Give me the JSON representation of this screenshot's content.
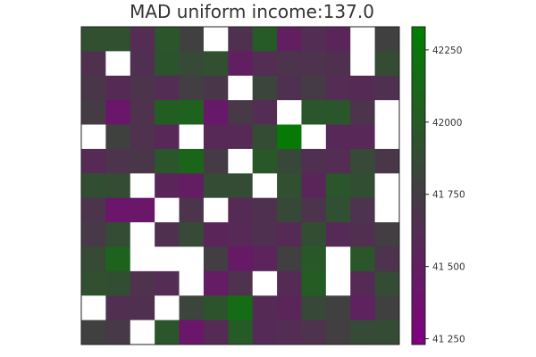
{
  "chart_data": {
    "type": "heatmap",
    "title": "MAD uniform income:137.0",
    "rows": 13,
    "cols": 13,
    "color_min": 41230,
    "color_max": 42330,
    "color_low": "#800080",
    "color_mid": "#404040",
    "color_high": "#008000",
    "empty_color": "#ffffff",
    "colorbar_ticks": [
      {
        "value": 41250,
        "label": "41 250"
      },
      {
        "value": 41500,
        "label": "41 500"
      },
      {
        "value": 41750,
        "label": "41 750"
      },
      {
        "value": 42000,
        "label": "42000"
      },
      {
        "value": 42250,
        "label": "42250"
      }
    ],
    "values": [
      [
        41920,
        41920,
        41610,
        41960,
        41780,
        null,
        41650,
        42000,
        41500,
        41620,
        41560,
        null,
        41780
      ],
      [
        41650,
        null,
        41640,
        41950,
        41860,
        41920,
        41500,
        41620,
        41680,
        41670,
        41650,
        null,
        41880
      ],
      [
        41700,
        41600,
        41680,
        41620,
        41760,
        41700,
        null,
        41820,
        41640,
        41740,
        41620,
        41600,
        41640
      ],
      [
        41740,
        41420,
        41660,
        42040,
        42070,
        41440,
        41720,
        41620,
        null,
        41960,
        41960,
        41680,
        null
      ],
      [
        null,
        41790,
        41660,
        41570,
        null,
        41580,
        41580,
        41880,
        42270,
        null,
        41570,
        41570,
        null
      ],
      [
        41600,
        41680,
        41700,
        41960,
        42100,
        41740,
        null,
        41990,
        41850,
        41640,
        41620,
        41860,
        41700
      ],
      [
        41900,
        41880,
        null,
        41560,
        41480,
        41880,
        41880,
        null,
        41910,
        41560,
        41960,
        41900,
        null
      ],
      [
        41680,
        41410,
        41420,
        null,
        41680,
        null,
        41600,
        41650,
        41850,
        41680,
        41910,
        41670,
        null
      ],
      [
        41720,
        41880,
        null,
        41650,
        41860,
        41560,
        41580,
        41640,
        41600,
        41900,
        41590,
        41630,
        41760
      ],
      [
        41870,
        42080,
        null,
        null,
        null,
        41760,
        41450,
        41530,
        41780,
        41990,
        null,
        41970,
        41670
      ],
      [
        41920,
        41900,
        41660,
        41620,
        null,
        41470,
        41660,
        null,
        41600,
        42020,
        null,
        41600,
        41880
      ],
      [
        null,
        41630,
        41650,
        null,
        41820,
        41940,
        42160,
        41600,
        41560,
        41850,
        41780,
        41520,
        41780
      ],
      [
        41780,
        41720,
        null,
        41960,
        41420,
        41600,
        42000,
        41590,
        41620,
        41660,
        41760,
        41860,
        41880
      ]
    ]
  }
}
